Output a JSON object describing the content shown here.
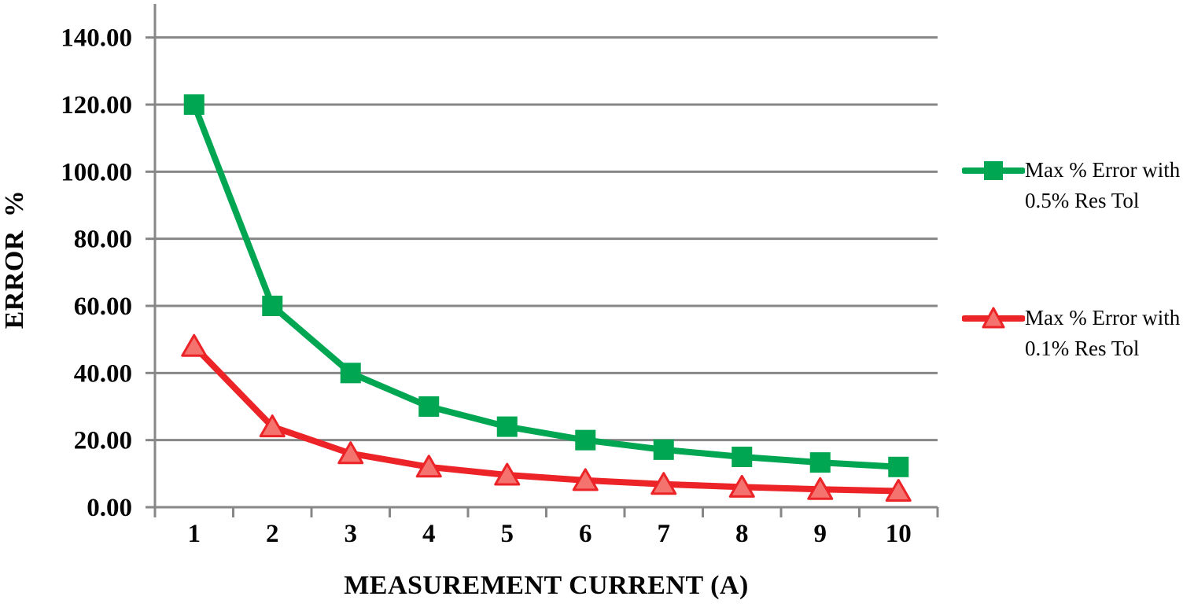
{
  "chart_data": {
    "type": "line",
    "title": "",
    "xlabel": "MEASUREMENT CURRENT (A)",
    "ylabel": "ERROR %",
    "x": [
      1,
      2,
      3,
      4,
      5,
      6,
      7,
      8,
      9,
      10
    ],
    "ylim": [
      0,
      150
    ],
    "ytick_step": 20,
    "ytick_labels": [
      "0.00",
      "20.00",
      "40.00",
      "60.00",
      "80.00",
      "100.00",
      "120.00",
      "140.00"
    ],
    "grid": true,
    "grid_color": "#878787",
    "axis_color": "#878787",
    "text_color": "#050505",
    "legend_position": "right",
    "series": [
      {
        "name": "Max % Error with 0.5% Res Tol",
        "marker": "square",
        "color": "#00A651",
        "marker_fill": "#00A651",
        "values": [
          120.0,
          60.0,
          40.0,
          30.0,
          24.0,
          20.0,
          17.14,
          15.0,
          13.33,
          12.0
        ]
      },
      {
        "name": "Max % Error with 0.1% Res Tol",
        "marker": "triangle",
        "color": "#EC2427",
        "marker_fill": "#F4736F",
        "values": [
          48.0,
          24.0,
          16.0,
          12.0,
          9.6,
          8.0,
          6.86,
          6.0,
          5.33,
          4.8
        ]
      }
    ]
  }
}
